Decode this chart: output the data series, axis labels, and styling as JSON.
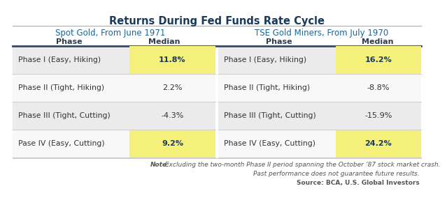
{
  "title": "Returns During Fed Funds Rate Cycle",
  "title_color": "#1a3a5c",
  "subtitle_left": "Spot Gold, From June 1971",
  "subtitle_right": "TSE Gold Miners, From July 1970",
  "subtitle_color": "#1a6699",
  "col_headers": [
    "Phase",
    "Median",
    "Phase",
    "Median"
  ],
  "rows": [
    {
      "left_phase": "Phase I (Easy, Hiking)",
      "left_median": "11.8%",
      "left_highlight": true,
      "right_phase": "Phase I (Easy, Hiking)",
      "right_median": "16.2%",
      "right_highlight": true
    },
    {
      "left_phase": "Phase II (Tight, Hiking)",
      "left_median": "2.2%",
      "left_highlight": false,
      "right_phase": "Phase II (Tight, Hiking)",
      "right_median": "-8.8%",
      "right_highlight": false
    },
    {
      "left_phase": "Phase III (Tight, Cutting)",
      "left_median": "-4.3%",
      "left_highlight": false,
      "right_phase": "Phase III (Tight, Cutting)",
      "right_median": "-15.9%",
      "right_highlight": false
    },
    {
      "left_phase": "Pase IV (Easy, Cutting)",
      "left_median": "9.2%",
      "left_highlight": true,
      "right_phase": "Phase IV (Easy, Cutting)",
      "right_median": "24.2%",
      "right_highlight": true
    }
  ],
  "note_bold": "Note:",
  "note_italic": " Excluding the two-month Phase II period spanning the October ’87 stock market crash.",
  "note2": "Past performance does not guarantee future results.",
  "note3": "Source: BCA, U.S. Global Investors",
  "note_color": "#555555",
  "highlight_color": "#f5f07a",
  "row_bg_odd": "#ebebeb",
  "row_bg_even": "#f8f8f8",
  "header_line_color": "#2c4a6e",
  "sep_line_color": "#cccccc",
  "title_line_color": "#aaaaaa",
  "text_dark": "#2c3e50",
  "phase_color": "#333333",
  "median_highlight_color": "#1a3a5c"
}
